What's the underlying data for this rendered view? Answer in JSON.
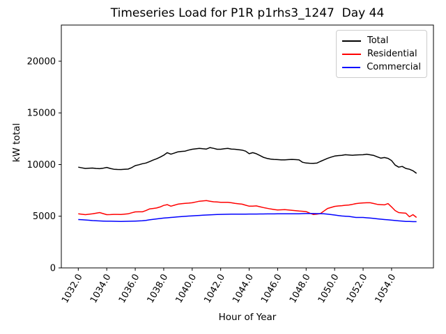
{
  "chart_data": {
    "type": "line",
    "title": "Timeseries Load for P1R p1rhs3_1247  Day 44",
    "xlabel": "Hour of Year",
    "ylabel": "kW total",
    "grid": false,
    "background": "#ffffff",
    "xlim": [
      1030.81,
      1056.94
    ],
    "ylim": [
      0,
      23500
    ],
    "xticks": {
      "values": [
        1032,
        1034,
        1036,
        1038,
        1040,
        1042,
        1044,
        1046,
        1048,
        1050,
        1052,
        1054
      ],
      "labels": [
        "1032.0",
        "1034.0",
        "1036.0",
        "1038.0",
        "1040.0",
        "1042.0",
        "1044.0",
        "1046.0",
        "1048.0",
        "1050.0",
        "1052.0",
        "1054.0"
      ],
      "rotation_deg": 60
    },
    "yticks": {
      "values": [
        0,
        5000,
        10000,
        15000,
        20000
      ],
      "labels": [
        "0",
        "5000",
        "10000",
        "15000",
        "20000"
      ]
    },
    "legend": {
      "position": "upper right",
      "entries": [
        "Total",
        "Residential",
        "Commercial"
      ]
    },
    "x": [
      1032,
      1032.25,
      1032.5,
      1032.75,
      1033,
      1033.25,
      1033.5,
      1033.75,
      1034,
      1034.25,
      1034.5,
      1034.75,
      1035,
      1035.25,
      1035.5,
      1035.75,
      1036,
      1036.25,
      1036.5,
      1036.75,
      1037,
      1037.25,
      1037.5,
      1037.75,
      1038,
      1038.25,
      1038.5,
      1038.75,
      1039,
      1039.25,
      1039.5,
      1039.75,
      1040,
      1040.25,
      1040.5,
      1040.75,
      1041,
      1041.25,
      1041.5,
      1041.75,
      1042,
      1042.25,
      1042.5,
      1042.75,
      1043,
      1043.25,
      1043.5,
      1043.75,
      1044,
      1044.25,
      1044.5,
      1044.75,
      1045,
      1045.25,
      1045.5,
      1045.75,
      1046,
      1046.25,
      1046.5,
      1046.75,
      1047,
      1047.25,
      1047.5,
      1047.75,
      1048,
      1048.25,
      1048.5,
      1048.75,
      1049,
      1049.25,
      1049.5,
      1049.75,
      1050,
      1050.25,
      1050.5,
      1050.75,
      1051,
      1051.25,
      1051.5,
      1051.75,
      1052,
      1052.25,
      1052.5,
      1052.75,
      1053,
      1053.25,
      1053.5,
      1053.75,
      1054,
      1054.25,
      1054.5,
      1054.75,
      1055,
      1055.25,
      1055.5,
      1055.75
    ],
    "series": [
      {
        "name": "Total",
        "color": "#000000",
        "values": [
          9750,
          9680,
          9620,
          9650,
          9660,
          9620,
          9600,
          9650,
          9720,
          9620,
          9550,
          9530,
          9520,
          9540,
          9560,
          9700,
          9900,
          9980,
          10080,
          10150,
          10280,
          10430,
          10560,
          10720,
          10900,
          11150,
          11000,
          11120,
          11230,
          11270,
          11300,
          11400,
          11480,
          11520,
          11570,
          11530,
          11500,
          11640,
          11570,
          11480,
          11480,
          11530,
          11560,
          11500,
          11480,
          11440,
          11400,
          11300,
          11050,
          11150,
          11050,
          10880,
          10700,
          10600,
          10530,
          10500,
          10480,
          10460,
          10450,
          10480,
          10500,
          10480,
          10450,
          10220,
          10150,
          10130,
          10120,
          10140,
          10300,
          10450,
          10600,
          10720,
          10820,
          10870,
          10890,
          10950,
          10920,
          10900,
          10930,
          10940,
          10950,
          11000,
          10940,
          10880,
          10750,
          10620,
          10680,
          10600,
          10380,
          9950,
          9750,
          9820,
          9620,
          9550,
          9400,
          9150
        ]
      },
      {
        "name": "Residential",
        "color": "#ff0000",
        "values": [
          5230,
          5190,
          5150,
          5190,
          5230,
          5290,
          5350,
          5250,
          5150,
          5160,
          5180,
          5175,
          5170,
          5200,
          5230,
          5330,
          5420,
          5425,
          5430,
          5550,
          5700,
          5750,
          5800,
          5900,
          6050,
          6120,
          5970,
          6070,
          6170,
          6210,
          6250,
          6270,
          6300,
          6380,
          6450,
          6480,
          6510,
          6450,
          6400,
          6380,
          6350,
          6350,
          6350,
          6300,
          6240,
          6200,
          6170,
          6070,
          5970,
          5980,
          6000,
          5920,
          5840,
          5770,
          5700,
          5650,
          5600,
          5620,
          5640,
          5600,
          5570,
          5540,
          5500,
          5480,
          5450,
          5300,
          5170,
          5200,
          5250,
          5500,
          5750,
          5850,
          5950,
          5990,
          6020,
          6060,
          6090,
          6150,
          6220,
          6260,
          6290,
          6300,
          6300,
          6230,
          6150,
          6120,
          6100,
          6220,
          5900,
          5550,
          5350,
          5320,
          5290,
          4950,
          5150,
          4880
        ]
      },
      {
        "name": "Commercial",
        "color": "#0000ff",
        "values": [
          4680,
          4660,
          4640,
          4610,
          4580,
          4560,
          4545,
          4530,
          4520,
          4515,
          4510,
          4505,
          4500,
          4505,
          4510,
          4520,
          4530,
          4545,
          4560,
          4600,
          4650,
          4700,
          4740,
          4780,
          4820,
          4850,
          4880,
          4910,
          4940,
          4965,
          4990,
          5015,
          5040,
          5060,
          5080,
          5100,
          5120,
          5135,
          5150,
          5165,
          5180,
          5185,
          5190,
          5195,
          5200,
          5202,
          5205,
          5208,
          5210,
          5212,
          5215,
          5218,
          5220,
          5222,
          5225,
          5228,
          5230,
          5230,
          5230,
          5230,
          5230,
          5235,
          5240,
          5250,
          5260,
          5262,
          5260,
          5255,
          5250,
          5230,
          5200,
          5160,
          5120,
          5070,
          5020,
          5000,
          4980,
          4930,
          4880,
          4880,
          4880,
          4850,
          4820,
          4785,
          4750,
          4715,
          4680,
          4650,
          4620,
          4585,
          4550,
          4525,
          4500,
          4490,
          4480,
          4480
        ]
      }
    ]
  }
}
